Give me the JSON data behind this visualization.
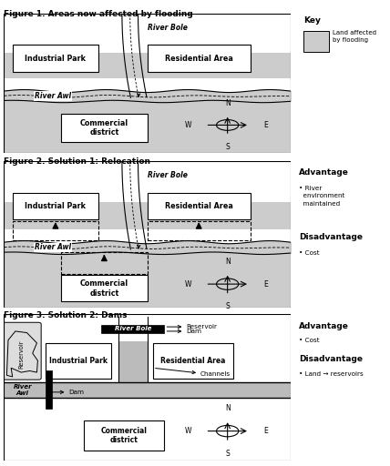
{
  "fig_title1": "Figure 1. Areas now affected by flooding",
  "fig_title2": "Figure 2. Solution 1: Relocation",
  "fig_title3": "Figure 3. Solution 2: Dams",
  "flood_color": "#cccccc",
  "key_label": "Key",
  "key_desc": "Land affected\nby flooding",
  "adv1_title": "Advantage",
  "adv1_bullet": "• River\n  environment\n  maintained",
  "dis1_title": "Disadvantage",
  "dis1_bullet": "• Cost",
  "adv2_title": "Advantage",
  "adv2_bullet": "• Cost",
  "dis2_title": "Disadvantage",
  "dis2_bullet": "• Land → reservoirs",
  "background": "white"
}
